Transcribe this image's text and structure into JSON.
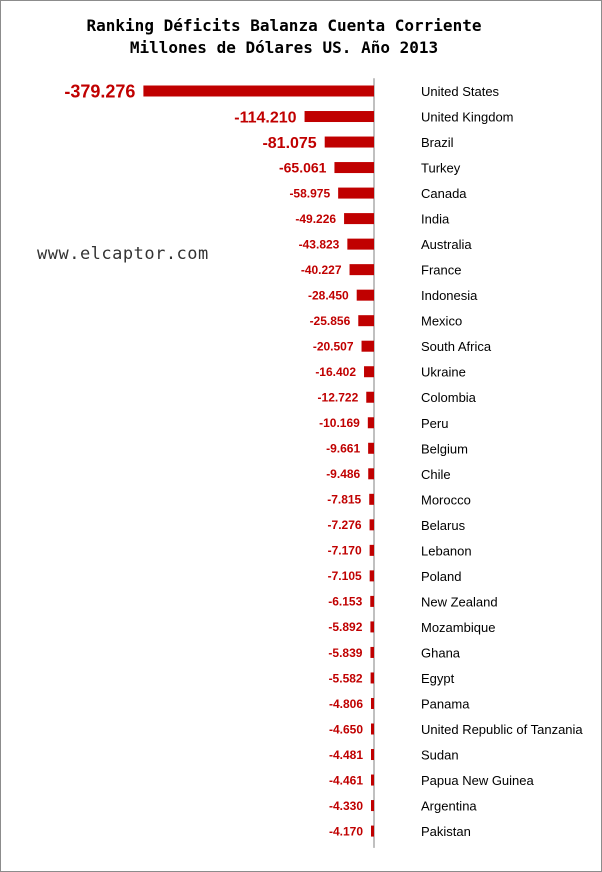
{
  "title_line1": "Ranking Déficits Balanza Cuenta Corriente",
  "title_line2": "Millones de Dólares US. Año 2013",
  "watermark": "www.elcaptor.com",
  "colors": {
    "bar": "#c00000",
    "label": "#c00000",
    "axis": "#808080"
  },
  "chart_data": {
    "type": "bar",
    "orientation": "horizontal",
    "title": "Ranking Déficits Balanza Cuenta Corriente Millones de Dólares US. Año 2013",
    "categories": [
      "United States",
      "United Kingdom",
      "Brazil",
      "Turkey",
      "Canada",
      "India",
      "Australia",
      "France",
      "Indonesia",
      "Mexico",
      "South Africa",
      "Ukraine",
      "Colombia",
      "Peru",
      "Belgium",
      "Chile",
      "Morocco",
      "Belarus",
      "Lebanon",
      "Poland",
      "New Zealand",
      "Mozambique",
      "Ghana",
      "Egypt",
      "Panama",
      "United Republic of Tanzania",
      "Sudan",
      "Papua New Guinea",
      "Argentina",
      "Pakistan"
    ],
    "values": [
      -379.276,
      -114.21,
      -81.075,
      -65.061,
      -58.975,
      -49.226,
      -43.823,
      -40.227,
      -28.45,
      -25.856,
      -20.507,
      -16.402,
      -12.722,
      -10.169,
      -9.661,
      -9.486,
      -7.815,
      -7.276,
      -7.17,
      -7.105,
      -6.153,
      -5.892,
      -5.839,
      -5.582,
      -4.806,
      -4.65,
      -4.481,
      -4.461,
      -4.33,
      -4.17
    ],
    "value_labels": [
      "-379.276",
      "-114.210",
      "-81.075",
      "-65.061",
      "-58.975",
      "-49.226",
      "-43.823",
      "-40.227",
      "-28.450",
      "-25.856",
      "-20.507",
      "-16.402",
      "-12.722",
      "-10.169",
      "-9.661",
      "-9.486",
      "-7.815",
      "-7.276",
      "-7.170",
      "-7.105",
      "-6.153",
      "-5.892",
      "-5.839",
      "-5.582",
      "-4.806",
      "-4.650",
      "-4.481",
      "-4.461",
      "-4.330",
      "-4.170"
    ],
    "xlabel": "",
    "ylabel": "",
    "grid": false,
    "legend": false
  }
}
